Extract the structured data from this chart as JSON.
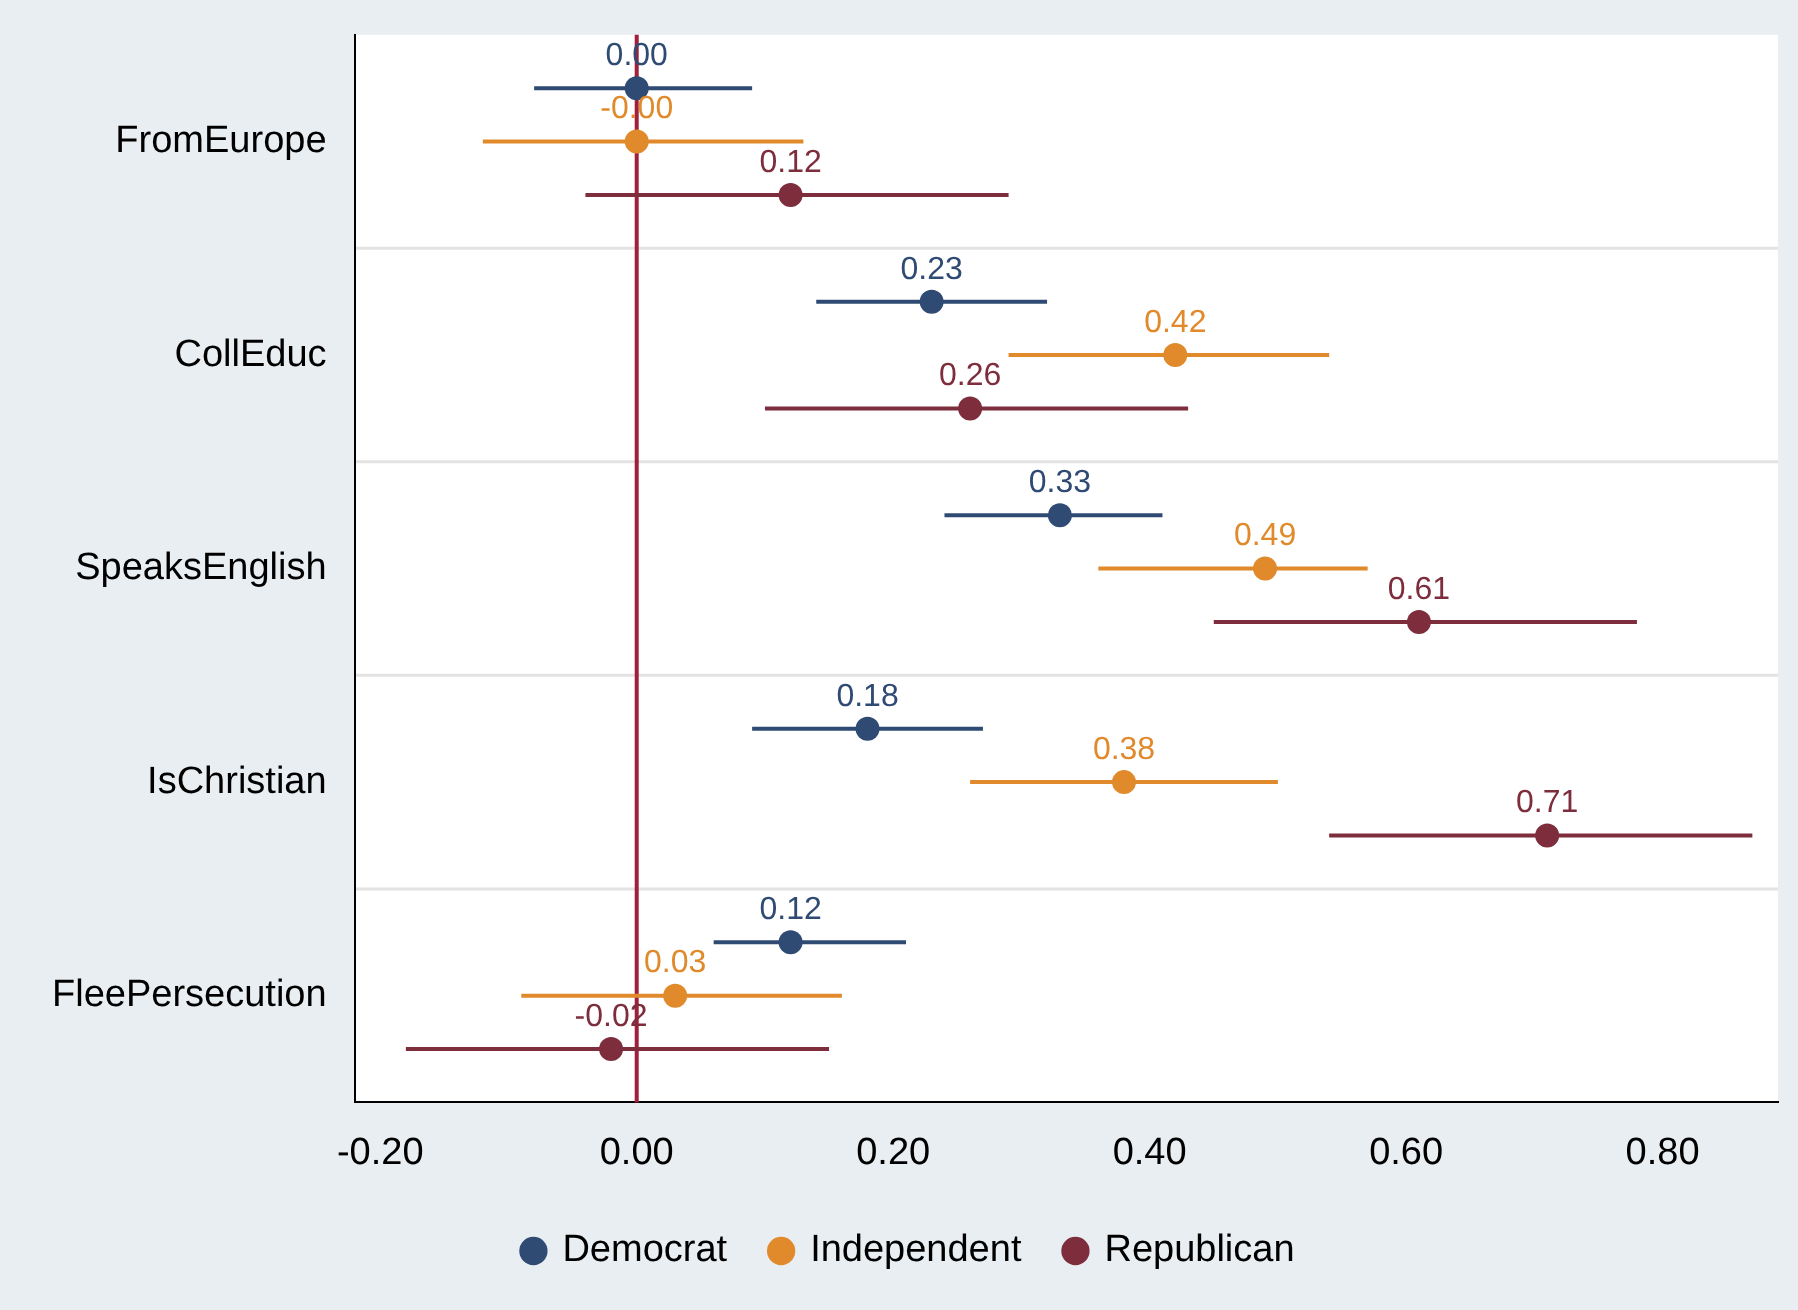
{
  "chart_data": {
    "type": "scatter",
    "orientation": "horizontal",
    "categories": [
      "FromEurope",
      "CollEduc",
      "SpeaksEnglish",
      "IsChristian",
      "FleePersecution"
    ],
    "series": [
      {
        "name": "Democrat",
        "color": "#2f4a73",
        "values": [
          0.0,
          0.23,
          0.33,
          0.18,
          0.12
        ],
        "value_labels": [
          "0.00",
          "0.23",
          "0.33",
          "0.18",
          "0.12"
        ],
        "errors": [
          [
            -0.08,
            0.09
          ],
          [
            0.14,
            0.32
          ],
          [
            0.24,
            0.41
          ],
          [
            0.09,
            0.27
          ],
          [
            0.06,
            0.21
          ]
        ]
      },
      {
        "name": "Independent",
        "color": "#e08a2c",
        "values": [
          0.0,
          0.42,
          0.49,
          0.38,
          0.03
        ],
        "value_labels": [
          "-0.00",
          "0.42",
          "0.49",
          "0.38",
          "0.03"
        ],
        "errors": [
          [
            -0.12,
            0.13
          ],
          [
            0.29,
            0.54
          ],
          [
            0.36,
            0.57
          ],
          [
            0.26,
            0.5
          ],
          [
            -0.09,
            0.16
          ]
        ]
      },
      {
        "name": "Republican",
        "color": "#7d2d3b",
        "values": [
          0.12,
          0.26,
          0.61,
          0.71,
          -0.02
        ],
        "value_labels": [
          "0.12",
          "0.26",
          "0.61",
          "0.71",
          "-0.02"
        ],
        "errors": [
          [
            -0.04,
            0.29
          ],
          [
            0.1,
            0.43
          ],
          [
            0.45,
            0.78
          ],
          [
            0.54,
            0.87
          ],
          [
            -0.18,
            0.15
          ]
        ]
      }
    ],
    "xlim": [
      -0.22,
      0.89
    ],
    "xticks": [
      {
        "value": -0.2,
        "label": "-0.20"
      },
      {
        "value": 0,
        "label": "0.00"
      },
      {
        "value": 0.2,
        "label": "0.20"
      },
      {
        "value": 0.4,
        "label": "0.40"
      },
      {
        "value": 0.6,
        "label": "0.60"
      },
      {
        "value": 0.8,
        "label": "0.80"
      }
    ],
    "ref_lines": [
      {
        "axis": "x",
        "value": 0,
        "color": "#a0203c"
      }
    ],
    "grid": "y",
    "legend": "bottom",
    "marker": "circle"
  }
}
